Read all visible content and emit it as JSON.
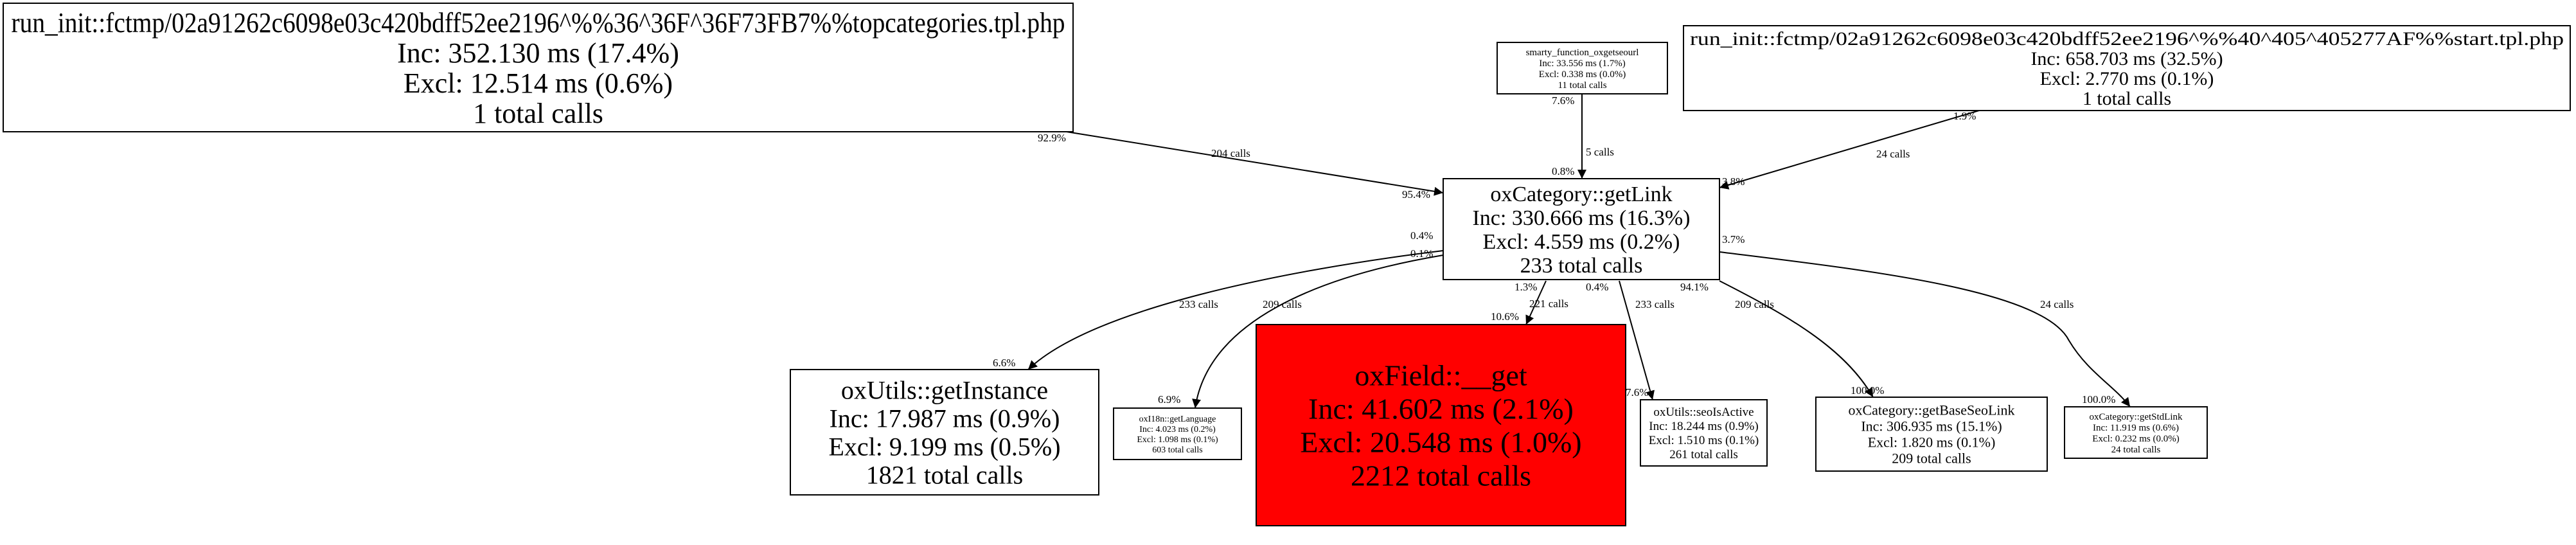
{
  "nodes": [
    {
      "id": "topcategories",
      "fill": "#ffffff",
      "lines": [
        "run_init::fctmp/02a91262c6098e03c420bdff52ee2196^%%36^36F^36F73FB7%%topcategories.tpl.php",
        "Inc: 352.130 ms (17.4%)",
        "Excl: 12.514 ms (0.6%)",
        "1 total calls"
      ]
    },
    {
      "id": "smarty-function-oxgetseourl",
      "fill": "#ffffff",
      "lines": [
        "smarty_function_oxgetseourl",
        "Inc: 33.556 ms (1.7%)",
        "Excl: 0.338 ms (0.0%)",
        "11 total calls"
      ]
    },
    {
      "id": "start-tpl",
      "fill": "#ffffff",
      "lines": [
        "run_init::fctmp/02a91262c6098e03c420bdff52ee2196^%%40^405^405277AF%%start.tpl.php",
        "Inc: 658.703 ms (32.5%)",
        "Excl: 2.770 ms (0.1%)",
        "1 total calls"
      ]
    },
    {
      "id": "oxcategory-getlink",
      "fill": "#ffffff",
      "lines": [
        "oxCategory::getLink",
        "Inc: 330.666 ms (16.3%)",
        "Excl: 4.559 ms (0.2%)",
        "233 total calls"
      ]
    },
    {
      "id": "oxutils-getinstance",
      "fill": "#ffffff",
      "lines": [
        "oxUtils::getInstance",
        "Inc: 17.987 ms (0.9%)",
        "Excl: 9.199 ms (0.5%)",
        "1821 total calls"
      ]
    },
    {
      "id": "oxi18n-getlanguage",
      "fill": "#ffffff",
      "lines": [
        "oxI18n::getLanguage",
        "Inc: 4.023 ms (0.2%)",
        "Excl: 1.098 ms (0.1%)",
        "603 total calls"
      ]
    },
    {
      "id": "oxfield-get",
      "fill": "#ff0000",
      "lines": [
        "oxField::__get",
        "Inc: 41.602 ms (2.1%)",
        "Excl: 20.548 ms (1.0%)",
        "2212 total calls"
      ]
    },
    {
      "id": "oxutils-seoisactive",
      "fill": "#ffffff",
      "lines": [
        "oxUtils::seoIsActive",
        "Inc: 18.244 ms (0.9%)",
        "Excl: 1.510 ms (0.1%)",
        "261 total calls"
      ]
    },
    {
      "id": "oxcategory-getbaseseolink",
      "fill": "#ffffff",
      "lines": [
        "oxCategory::getBaseSeoLink",
        "Inc: 306.935 ms (15.1%)",
        "Excl: 1.820 ms (0.1%)",
        "209 total calls"
      ]
    },
    {
      "id": "oxcategory-getstdlink",
      "fill": "#ffffff",
      "lines": [
        "oxCategory::getStdLink",
        "Inc: 11.919 ms (0.6%)",
        "Excl: 0.232 ms (0.0%)",
        "24 total calls"
      ]
    }
  ],
  "edges": [
    {
      "from": "topcategories",
      "to": "oxcategory-getlink",
      "tail": "92.9%",
      "calls": "204 calls",
      "head": "95.4%"
    },
    {
      "from": "smarty-function-oxgetseourl",
      "to": "oxcategory-getlink",
      "tail": "7.6%",
      "calls": "5 calls",
      "head": "0.8%"
    },
    {
      "from": "start-tpl",
      "to": "oxcategory-getlink",
      "tail": "1.9%",
      "calls": "24 calls",
      "head": "3.8%"
    },
    {
      "from": "oxcategory-getlink",
      "to": "oxutils-getinstance",
      "tail": "0.4%",
      "calls": "233 calls",
      "head": "6.6%"
    },
    {
      "from": "oxcategory-getlink",
      "to": "oxi18n-getlanguage",
      "tail": "0.1%",
      "calls": "209 calls",
      "head": "6.9%"
    },
    {
      "from": "oxcategory-getlink",
      "to": "oxfield-get",
      "tail": "1.3%",
      "calls": "221 calls",
      "head": "10.6%"
    },
    {
      "from": "oxcategory-getlink",
      "to": "oxutils-seoisactive",
      "tail": "0.4%",
      "calls": "233 calls",
      "head": "7.6%"
    },
    {
      "from": "oxcategory-getlink",
      "to": "oxcategory-getbaseseolink",
      "tail": "94.1%",
      "calls": "209 calls",
      "head": "100.0%"
    },
    {
      "from": "oxcategory-getlink",
      "to": "oxcategory-getstdlink",
      "tail": "3.7%",
      "calls": "24 calls",
      "head": "100.0%"
    }
  ]
}
